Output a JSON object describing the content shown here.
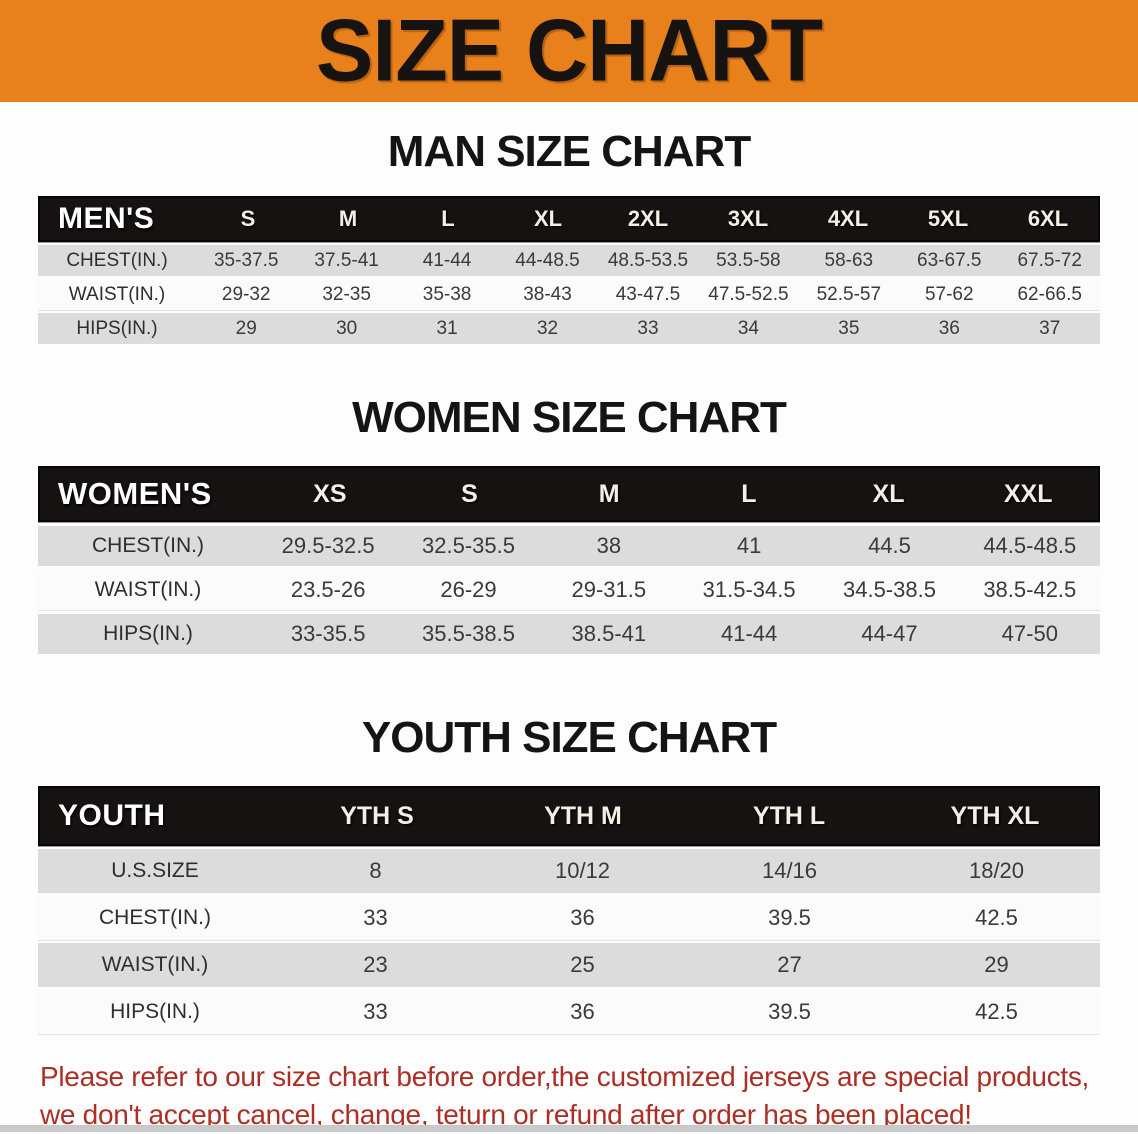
{
  "banner": {
    "title": "SIZE CHART"
  },
  "colors": {
    "banner_bg": "#E8811B",
    "header_bar": "#161212",
    "row_gray": "#DCDCDC",
    "disclaimer_red": "#AC2F26"
  },
  "tables": [
    {
      "heading": "MAN SIZE CHART",
      "corner": "MEN'S",
      "columns": [
        "S",
        "M",
        "L",
        "XL",
        "2XL",
        "3XL",
        "4XL",
        "5XL",
        "6XL"
      ],
      "rows": [
        {
          "label": "CHEST(IN.)",
          "values": [
            "35-37.5",
            "37.5-41",
            "41-44",
            "44-48.5",
            "48.5-53.5",
            "53.5-58",
            "58-63",
            "63-67.5",
            "67.5-72"
          ]
        },
        {
          "label": "WAIST(IN.)",
          "values": [
            "29-32",
            "32-35",
            "35-38",
            "38-43",
            "43-47.5",
            "47.5-52.5",
            "52.5-57",
            "57-62",
            "62-66.5"
          ]
        },
        {
          "label": "HIPS(IN.)",
          "values": [
            "29",
            "30",
            "31",
            "32",
            "33",
            "34",
            "35",
            "36",
            "37"
          ]
        }
      ]
    },
    {
      "heading": "WOMEN SIZE CHART",
      "corner": "WOMEN'S",
      "columns": [
        "XS",
        "S",
        "M",
        "L",
        "XL",
        "XXL"
      ],
      "rows": [
        {
          "label": "CHEST(IN.)",
          "values": [
            "29.5-32.5",
            "32.5-35.5",
            "38",
            "41",
            "44.5",
            "44.5-48.5"
          ]
        },
        {
          "label": "WAIST(IN.)",
          "values": [
            "23.5-26",
            "26-29",
            "29-31.5",
            "31.5-34.5",
            "34.5-38.5",
            "38.5-42.5"
          ]
        },
        {
          "label": "HIPS(IN.)",
          "values": [
            "33-35.5",
            "35.5-38.5",
            "38.5-41",
            "41-44",
            "44-47",
            "47-50"
          ]
        }
      ]
    },
    {
      "heading": "YOUTH SIZE CHART",
      "corner": "YOUTH",
      "columns": [
        "YTH S",
        "YTH M",
        "YTH L",
        "YTH XL"
      ],
      "rows": [
        {
          "label": "U.S.SIZE",
          "values": [
            "8",
            "10/12",
            "14/16",
            "18/20"
          ]
        },
        {
          "label": "CHEST(IN.)",
          "values": [
            "33",
            "36",
            "39.5",
            "42.5"
          ]
        },
        {
          "label": "WAIST(IN.)",
          "values": [
            "23",
            "25",
            "27",
            "29"
          ]
        },
        {
          "label": "HIPS(IN.)",
          "values": [
            "33",
            "36",
            "39.5",
            "42.5"
          ]
        }
      ]
    }
  ],
  "disclaimer": {
    "line1": "Please refer to our size chart before order,the customized jerseys are special products,",
    "line2": "we don't accept cancel, change, teturn or refund after order has been placed!"
  }
}
